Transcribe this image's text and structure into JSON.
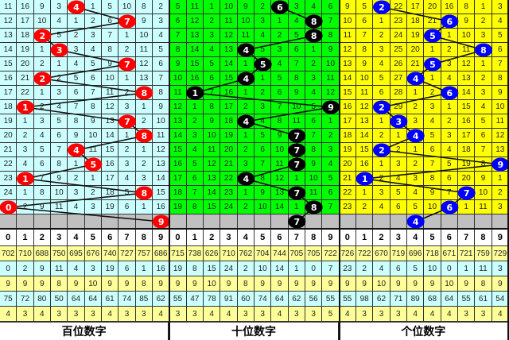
{
  "chart_data": {
    "type": "table",
    "columns": [
      "0",
      "1",
      "2",
      "3",
      "4",
      "5",
      "6",
      "7",
      "8",
      "9"
    ],
    "panels": [
      {
        "title": "百位数字",
        "bg_color": "#CCFFFF",
        "ball_color": "#FF0000",
        "draws": [
          4,
          7,
          2,
          3,
          7,
          2,
          8,
          1,
          7,
          8,
          4,
          5,
          1,
          8,
          0
        ],
        "next": 9,
        "rows": [
          [
            11,
            16,
            9,
            3,
            4,
            1,
            5,
            10,
            8,
            2
          ],
          [
            12,
            17,
            10,
            4,
            1,
            2,
            6,
            7,
            9,
            3
          ],
          [
            13,
            18,
            2,
            5,
            2,
            3,
            7,
            1,
            10,
            4
          ],
          [
            14,
            19,
            1,
            3,
            3,
            4,
            8,
            2,
            11,
            5
          ],
          [
            15,
            20,
            2,
            1,
            4,
            5,
            9,
            7,
            12,
            6
          ],
          [
            16,
            21,
            2,
            2,
            5,
            6,
            10,
            1,
            13,
            7
          ],
          [
            17,
            22,
            1,
            3,
            6,
            7,
            11,
            2,
            8,
            8
          ],
          [
            18,
            1,
            2,
            4,
            7,
            8,
            12,
            3,
            1,
            9
          ],
          [
            19,
            1,
            3,
            5,
            8,
            9,
            13,
            7,
            2,
            10
          ],
          [
            20,
            2,
            4,
            6,
            9,
            10,
            14,
            1,
            8,
            11
          ],
          [
            21,
            3,
            5,
            7,
            4,
            11,
            15,
            2,
            1,
            12
          ],
          [
            22,
            4,
            6,
            8,
            1,
            5,
            16,
            3,
            2,
            13
          ],
          [
            23,
            1,
            7,
            9,
            2,
            1,
            17,
            4,
            3,
            14
          ],
          [
            24,
            1,
            8,
            10,
            3,
            2,
            18,
            5,
            8,
            15
          ],
          [
            0,
            2,
            9,
            11,
            4,
            3,
            19,
            6,
            1,
            16
          ]
        ],
        "stats": [
          [
            702,
            710,
            688,
            750,
            695,
            676,
            740,
            727,
            757,
            686
          ],
          [
            0,
            2,
            9,
            11,
            4,
            3,
            19,
            6,
            1,
            16
          ],
          [
            9,
            9,
            9,
            8,
            9,
            10,
            9,
            9,
            8,
            9
          ],
          [
            75,
            72,
            80,
            50,
            64,
            64,
            61,
            74,
            85,
            62
          ],
          [
            4,
            3,
            4,
            3,
            3,
            3,
            4,
            3,
            3,
            4
          ]
        ]
      },
      {
        "title": "十位数字",
        "bg_color": "#00FF00",
        "ball_color": "#000000",
        "draws": [
          6,
          8,
          8,
          4,
          5,
          4,
          1,
          9,
          4,
          7,
          7,
          7,
          4,
          7,
          8
        ],
        "next": 7,
        "rows": [
          [
            5,
            11,
            1,
            10,
            9,
            2,
            6,
            3,
            4,
            6
          ],
          [
            6,
            12,
            2,
            11,
            10,
            3,
            1,
            4,
            8,
            7
          ],
          [
            7,
            13,
            3,
            12,
            11,
            4,
            2,
            5,
            8,
            8
          ],
          [
            8,
            14,
            4,
            13,
            4,
            5,
            3,
            6,
            1,
            9
          ],
          [
            9,
            15,
            5,
            14,
            1,
            5,
            4,
            7,
            2,
            10
          ],
          [
            10,
            16,
            6,
            15,
            4,
            1,
            5,
            8,
            3,
            11
          ],
          [
            11,
            1,
            7,
            16,
            1,
            2,
            6,
            9,
            4,
            12
          ],
          [
            12,
            1,
            8,
            17,
            2,
            3,
            7,
            10,
            5,
            9
          ],
          [
            13,
            2,
            9,
            18,
            4,
            4,
            8,
            11,
            6,
            1
          ],
          [
            14,
            3,
            10,
            19,
            1,
            5,
            9,
            7,
            7,
            2
          ],
          [
            15,
            4,
            11,
            20,
            2,
            6,
            10,
            7,
            8,
            3
          ],
          [
            16,
            5,
            12,
            21,
            3,
            7,
            11,
            7,
            9,
            4
          ],
          [
            17,
            6,
            13,
            22,
            4,
            8,
            12,
            1,
            10,
            5
          ],
          [
            18,
            7,
            14,
            23,
            1,
            9,
            13,
            7,
            11,
            6
          ],
          [
            19,
            8,
            15,
            24,
            2,
            10,
            14,
            1,
            8,
            7
          ]
        ],
        "stats": [
          [
            715,
            738,
            626,
            710,
            762,
            704,
            744,
            705,
            705,
            722
          ],
          [
            19,
            8,
            15,
            24,
            2,
            10,
            14,
            1,
            0,
            7
          ],
          [
            9,
            9,
            10,
            9,
            8,
            9,
            9,
            9,
            9,
            9
          ],
          [
            55,
            47,
            78,
            91,
            60,
            74,
            64,
            62,
            56,
            55
          ],
          [
            3,
            3,
            4,
            4,
            3,
            3,
            4,
            3,
            3,
            5
          ]
        ]
      },
      {
        "title": "个位数字",
        "bg_color": "#FFFF00",
        "ball_color": "#0000FF",
        "draws": [
          2,
          6,
          5,
          8,
          5,
          4,
          6,
          2,
          3,
          4,
          2,
          9,
          1,
          7,
          6
        ],
        "next": 4,
        "rows": [
          [
            9,
            5,
            2,
            22,
            17,
            20,
            16,
            8,
            1,
            3
          ],
          [
            10,
            6,
            1,
            23,
            18,
            21,
            6,
            9,
            2,
            4
          ],
          [
            11,
            7,
            2,
            24,
            19,
            5,
            1,
            10,
            3,
            5
          ],
          [
            12,
            8,
            3,
            25,
            20,
            1,
            2,
            11,
            8,
            6
          ],
          [
            13,
            9,
            4,
            26,
            21,
            5,
            3,
            12,
            1,
            7
          ],
          [
            14,
            10,
            5,
            27,
            4,
            1,
            4,
            13,
            2,
            8
          ],
          [
            15,
            11,
            6,
            28,
            1,
            2,
            6,
            14,
            3,
            9
          ],
          [
            16,
            12,
            2,
            29,
            2,
            3,
            1,
            15,
            4,
            10
          ],
          [
            17,
            13,
            1,
            3,
            3,
            4,
            2,
            16,
            5,
            11
          ],
          [
            18,
            14,
            2,
            1,
            4,
            5,
            3,
            17,
            6,
            12
          ],
          [
            19,
            15,
            2,
            2,
            1,
            6,
            4,
            18,
            7,
            13
          ],
          [
            20,
            16,
            1,
            3,
            2,
            7,
            5,
            19,
            8,
            9
          ],
          [
            21,
            1,
            2,
            4,
            3,
            8,
            6,
            20,
            9,
            1
          ],
          [
            22,
            1,
            3,
            5,
            4,
            9,
            7,
            7,
            10,
            2
          ],
          [
            23,
            2,
            4,
            6,
            5,
            10,
            6,
            1,
            11,
            3
          ]
        ],
        "stats": [
          [
            726,
            722,
            670,
            719,
            696,
            718,
            671,
            721,
            759,
            729
          ],
          [
            23,
            2,
            4,
            6,
            5,
            10,
            0,
            1,
            11,
            3
          ],
          [
            9,
            9,
            10,
            9,
            9,
            9,
            10,
            9,
            8,
            9
          ],
          [
            55,
            98,
            62,
            71,
            89,
            68,
            64,
            55,
            61,
            54
          ],
          [
            4,
            3,
            3,
            3,
            4,
            4,
            4,
            3,
            3,
            4
          ]
        ]
      }
    ],
    "colors": {
      "prediction_row": "#C0C0C0",
      "stat_row_a": "#FFFF99",
      "stat_row_b": "#CCFFFF",
      "line": "#111111"
    }
  }
}
